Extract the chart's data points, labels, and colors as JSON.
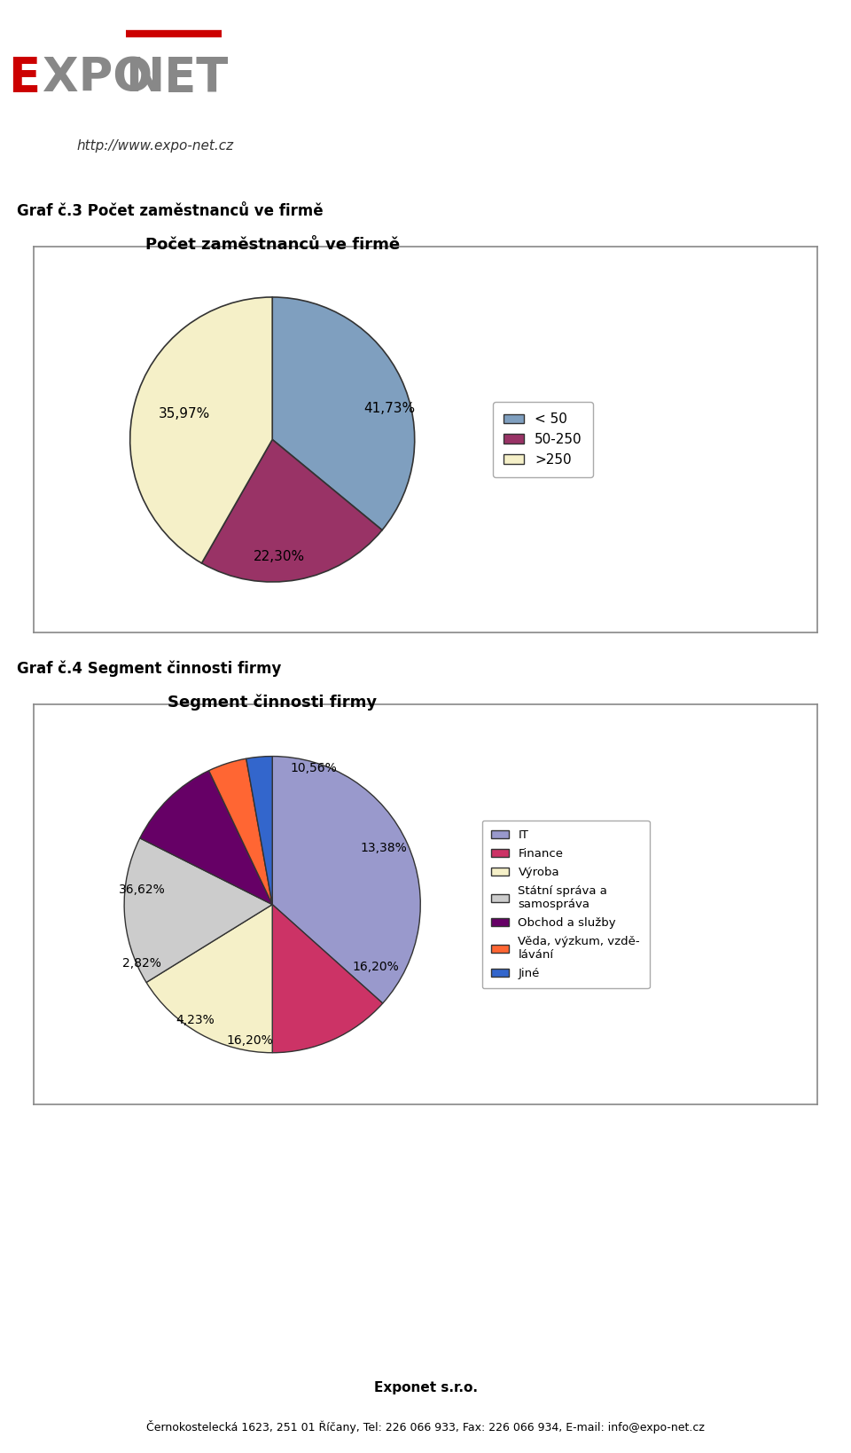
{
  "chart1_title": "Počet zaměstnanců ve firmě",
  "chart1_labels": [
    "< 50",
    "50-250",
    ">250"
  ],
  "chart1_values": [
    35.97,
    22.3,
    41.73
  ],
  "chart1_colors": [
    "#7f9fbf",
    "#993366",
    "#f5f0c8"
  ],
  "chart1_startangle": 90,
  "chart2_title": "Segment činnosti firmy",
  "chart2_labels": [
    "IT",
    "Finance",
    "Výroba",
    "Státní správa a\nsamospráva",
    "Obchod a služby",
    "Věda, výzkum, vzdě-\nlávání",
    "Jiné"
  ],
  "chart2_values": [
    36.62,
    13.38,
    16.2,
    16.2,
    10.56,
    4.23,
    2.82
  ],
  "chart2_colors": [
    "#9999cc",
    "#cc3366",
    "#f5f0c8",
    "#cccccc",
    "#660066",
    "#ff6633",
    "#3366cc"
  ],
  "chart2_startangle": 90,
  "header_text": "http://www.expo-net.cz",
  "label1": "Graf č.3 Počet zaměstnanců ve firmě",
  "label2": "Graf č.4 Segment činnosti firmy",
  "footer_company": "Exponet s.r.o.",
  "footer_address": "Černokostelecká 1623, 251 01 Říčany, Tel: 226 066 933, Fax: 226 066 934, E-mail: info@expo-net.cz",
  "bg_color": "#ffffff",
  "box_edge_color": "#888888"
}
